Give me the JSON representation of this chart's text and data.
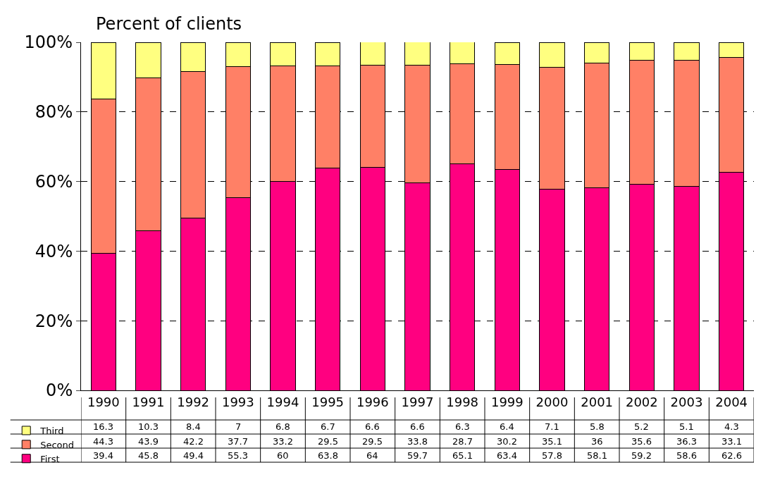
{
  "chart_data": {
    "type": "bar",
    "title": "Percent of clients",
    "stacked": true,
    "categories": [
      "1990",
      "1991",
      "1992",
      "1993",
      "1994",
      "1995",
      "1996",
      "1997",
      "1998",
      "1999",
      "2000",
      "2001",
      "2002",
      "2003",
      "2004"
    ],
    "series": [
      {
        "name": "First",
        "color": "#ff0080",
        "values": [
          39.4,
          45.8,
          49.4,
          55.3,
          60,
          63.8,
          64,
          59.7,
          65.1,
          63.4,
          57.8,
          58.1,
          59.2,
          58.6,
          62.6
        ]
      },
      {
        "name": "Second",
        "color": "#ff8066",
        "values": [
          44.3,
          43.9,
          42.2,
          37.7,
          33.2,
          29.5,
          29.5,
          33.8,
          28.7,
          30.2,
          35.1,
          36,
          35.6,
          36.3,
          33.1
        ]
      },
      {
        "name": "Third",
        "color": "#ffff80",
        "values": [
          16.3,
          10.3,
          8.4,
          7,
          6.8,
          6.7,
          6.6,
          6.6,
          6.3,
          6.4,
          7.1,
          5.8,
          5.2,
          5.1,
          4.3
        ]
      }
    ],
    "ylim": [
      0,
      100
    ],
    "yticks": [
      {
        "value": 0,
        "label": "0%"
      },
      {
        "value": 20,
        "label": "20%"
      },
      {
        "value": 40,
        "label": "40%"
      },
      {
        "value": 60,
        "label": "60%"
      },
      {
        "value": 80,
        "label": "80%"
      },
      {
        "value": 100,
        "label": "100%"
      }
    ],
    "grid": "y",
    "legend": "bottom left",
    "data_labels": true
  }
}
